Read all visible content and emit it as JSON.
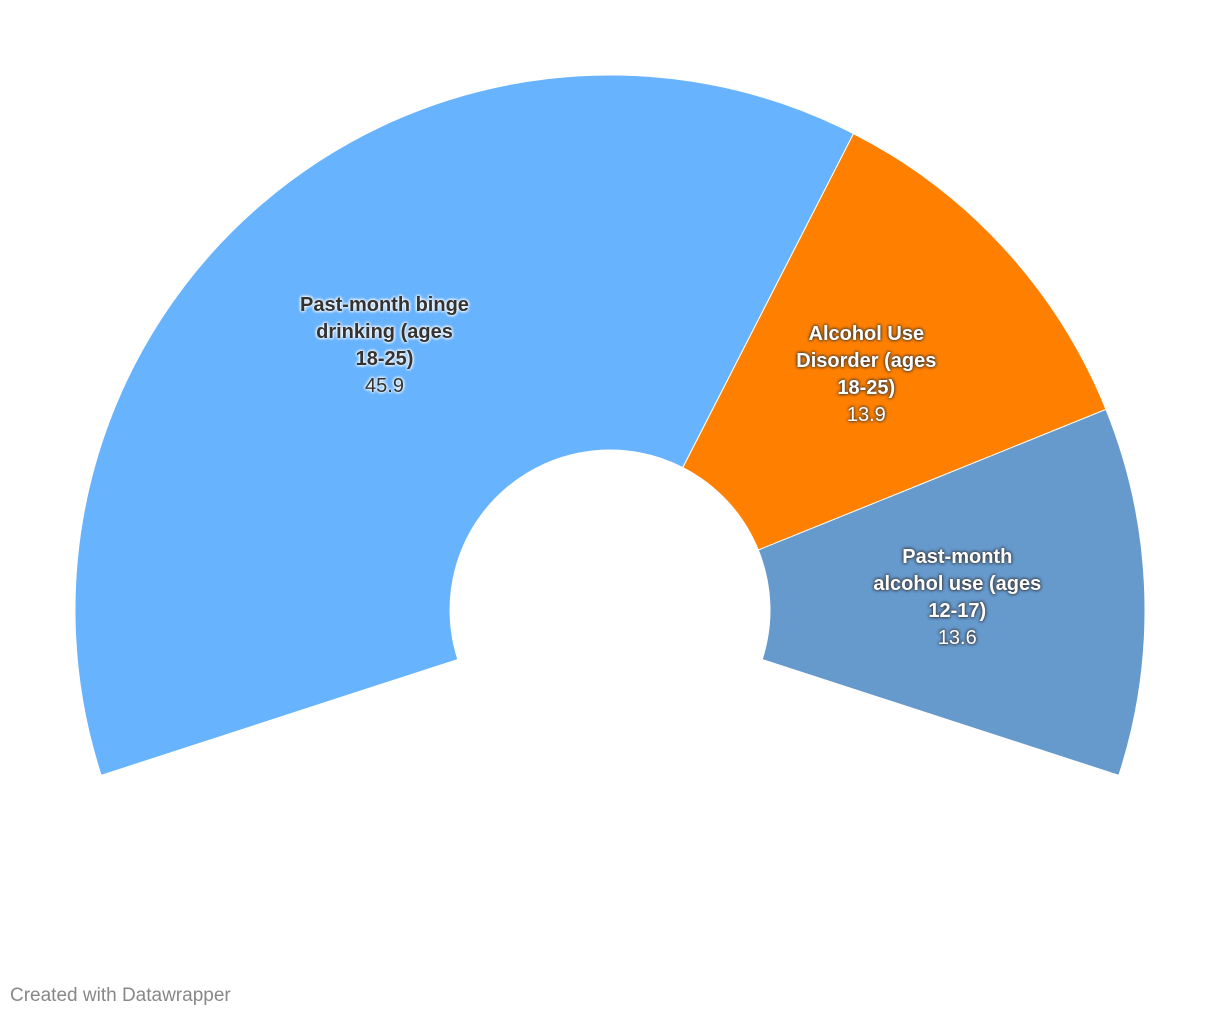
{
  "chart_data": {
    "type": "pie",
    "categories": [
      "Past-month binge drinking (ages 18-25)",
      "Alcohol Use Disorder (ages 18-25)",
      "Past-month alcohol use (ages 12-17)"
    ],
    "values": [
      45.9,
      13.9,
      13.6
    ],
    "colors": [
      "#68b3fd",
      "#ff8000",
      "#6699cc"
    ],
    "footer": "Created with Datawrapper"
  }
}
